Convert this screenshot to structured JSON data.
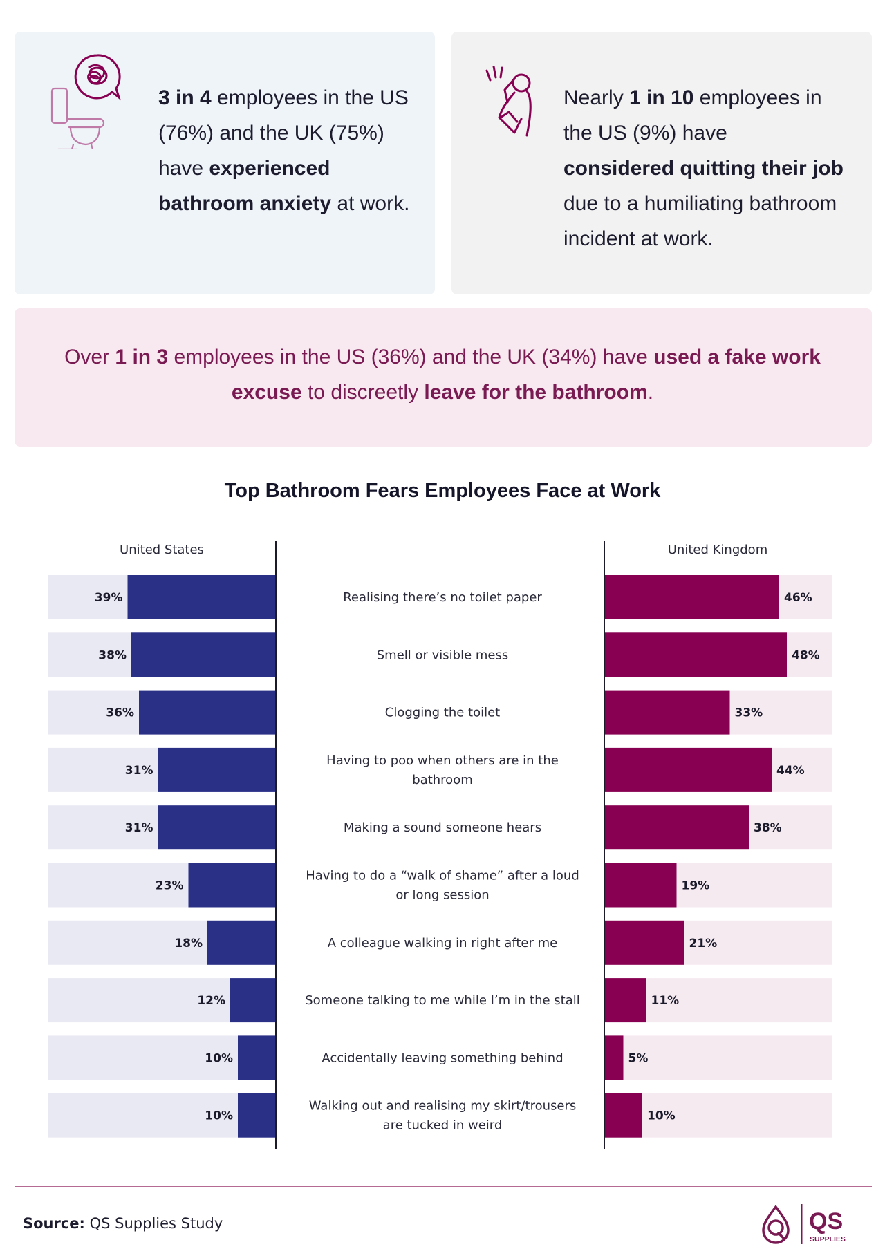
{
  "stats": {
    "left": {
      "p1": "3 in 4",
      "p2": " employees in the US (76%) and the UK (75%) have ",
      "p3": "experienced bathroom anxiety",
      "p4": " at work."
    },
    "right": {
      "p1": "Nearly ",
      "p2": "1 in 10",
      "p3": " employees in the US (9%) have ",
      "p4": "considered quitting their job",
      "p5": " due to a humiliating bathroom incident at work."
    },
    "wide": {
      "p1": "Over ",
      "p2": "1 in 3",
      "p3": " employees in the US (36%) and the UK (34%) have ",
      "p4": "used a fake work excuse",
      "p5": " to discreetly ",
      "p6": "leave for the bathroom",
      "p7": "."
    }
  },
  "chart_data": {
    "type": "bar",
    "title": "Top Bathroom Fears Employees Face at Work",
    "categories": [
      [
        "Realising there’s no toilet paper"
      ],
      [
        "Smell or visible mess"
      ],
      [
        "Clogging the toilet"
      ],
      [
        "Having to poo when others are in the",
        "bathroom"
      ],
      [
        "Making a sound someone hears"
      ],
      [
        "Having to do a “walk of shame” after a loud",
        "or long session"
      ],
      [
        "A colleague walking in right after me"
      ],
      [
        "Someone talking to me while I’m in the stall"
      ],
      [
        "Accidentally leaving something behind"
      ],
      [
        "Walking out and realising my skirt/trousers",
        "are tucked in weird"
      ]
    ],
    "series": [
      {
        "name": "United States",
        "values": [
          39,
          38,
          36,
          31,
          31,
          23,
          18,
          12,
          10,
          10
        ],
        "labels": [
          "39%",
          "38%",
          "36%",
          "31%",
          "31%",
          "23%",
          "18%",
          "12%",
          "10%",
          "10%"
        ],
        "color": "#2b3087",
        "track_color": "#e9e9f3"
      },
      {
        "name": "United Kingdom",
        "values": [
          46,
          48,
          33,
          44,
          38,
          19,
          21,
          11,
          5,
          10
        ],
        "labels": [
          "46%",
          "48%",
          "33%",
          "44%",
          "38%",
          "19%",
          "21%",
          "11%",
          "5%",
          "10%"
        ],
        "color": "#870052",
        "track_color": "#f6eaf1"
      }
    ],
    "xlim": [
      0,
      60
    ],
    "grid": false,
    "legend": "top"
  },
  "footer": {
    "source_label": "Source:",
    "source_text": " QS Supplies Study"
  },
  "logo": {
    "text": "QS",
    "subtext": "SUPPLIES",
    "color": "#7a1a53"
  }
}
